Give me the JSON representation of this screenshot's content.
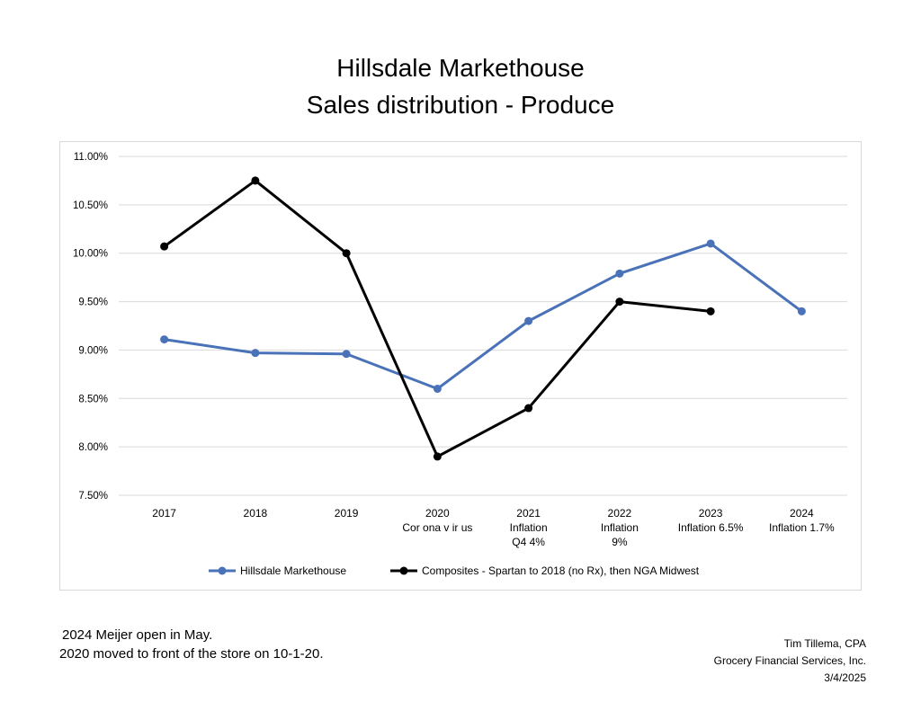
{
  "header": {
    "title_line1": "Hillsdale Markethouse",
    "title_line2": "Sales distribution - Produce"
  },
  "notes": {
    "line1": "2024 Meijer open in May.",
    "line2": "2020 moved to front of the store on 10-1-20."
  },
  "credit": {
    "name": "Tim Tillema, CPA",
    "company": "Grocery Financial Services, Inc.",
    "date": "3/4/2025"
  },
  "chart_data": {
    "type": "line",
    "title": "Hillsdale Markethouse Sales distribution - Produce",
    "categories": [
      [
        "2017"
      ],
      [
        "2018"
      ],
      [
        "2019"
      ],
      [
        "2020",
        "Cor ona v ir us"
      ],
      [
        "2021",
        "Inflation",
        "Q4 4%"
      ],
      [
        "2022",
        "Inflation",
        "9%"
      ],
      [
        "2023",
        "Inflation 6.5%"
      ],
      [
        "2024",
        "Inflation 1.7%"
      ]
    ],
    "yticks": [
      "7.50%",
      "8.00%",
      "8.50%",
      "9.00%",
      "9.50%",
      "10.00%",
      "10.50%",
      "11.00%"
    ],
    "ylim": [
      7.5,
      11.0
    ],
    "series": [
      {
        "name": "Hillsdale Markethouse",
        "color": "#4a72b8",
        "values": [
          9.11,
          8.97,
          8.96,
          8.6,
          9.3,
          9.79,
          10.1,
          9.4
        ]
      },
      {
        "name": "Composites - Spartan to 2018 (no Rx), then NGA Midwest",
        "color": "#000000",
        "values": [
          10.07,
          10.75,
          10.0,
          7.9,
          8.4,
          9.5,
          9.4,
          null
        ]
      }
    ],
    "legend_position": "bottom",
    "grid": true
  }
}
